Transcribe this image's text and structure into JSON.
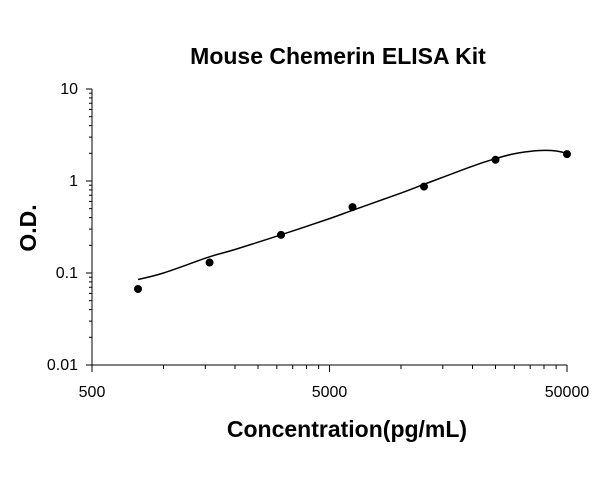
{
  "chart_data": {
    "type": "scatter",
    "title": "Mouse Chemerin ELISA Kit",
    "xlabel": "Concentration(pg/mL)",
    "ylabel": "O.D.",
    "x_scale": "log",
    "y_scale": "log",
    "xlim": [
      500,
      50000
    ],
    "ylim": [
      0.01,
      10
    ],
    "x_tick_labels": [
      "500",
      "5000",
      "50000"
    ],
    "x_tick_values": [
      500,
      5000,
      50000
    ],
    "y_tick_labels": [
      "10",
      "1",
      "0.1",
      "0.01"
    ],
    "y_tick_values": [
      10,
      1,
      0.1,
      0.01
    ],
    "grid": false,
    "legend": "none",
    "series": [
      {
        "x": [
          781,
          1563,
          3125,
          6250,
          12500,
          25000,
          50000
        ],
        "y": [
          0.067,
          0.13,
          0.26,
          0.52,
          0.87,
          1.7,
          1.96
        ]
      }
    ],
    "fit_curve": {
      "x": [
        781,
        1000,
        1563,
        2000,
        3125,
        5000,
        6250,
        10000,
        12500,
        20000,
        25000,
        30000,
        35000,
        40000,
        45000,
        50000
      ],
      "y": [
        0.085,
        0.1,
        0.15,
        0.18,
        0.26,
        0.39,
        0.48,
        0.74,
        0.92,
        1.45,
        1.75,
        1.98,
        2.1,
        2.15,
        2.12,
        2.0
      ]
    },
    "colors": {
      "marker": "#000000",
      "line": "#000000",
      "axis": "#000000"
    }
  }
}
